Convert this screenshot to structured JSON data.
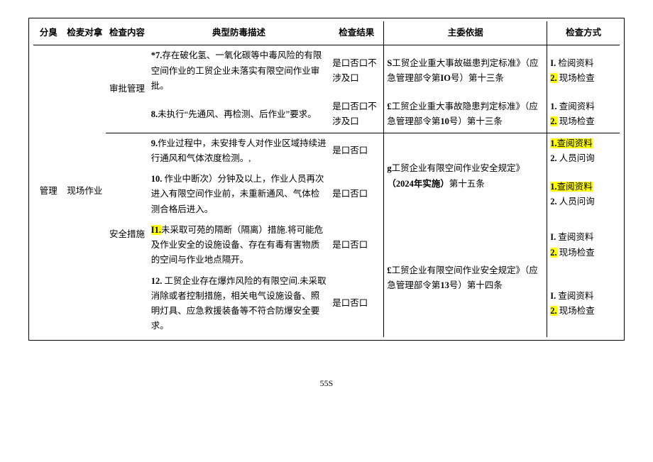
{
  "headers": {
    "c1": "分臭",
    "c2": "检麦对拿",
    "c3": "检查内容",
    "c4": "典型防毒描述",
    "c5": "检查结果",
    "c6": "主委依据",
    "c7": "检查方式"
  },
  "groups": {
    "cat": "管理",
    "obj": "现场作业",
    "content1": "审批管理",
    "content2": "安全措施"
  },
  "rows": [
    {
      "desc_pre": "*7.",
      "desc": "存在破化氢、一氧化碳等中毒风险的有限空间作业的工贸企业未落实有限空间作业审批。",
      "result": "是口否口不涉及口",
      "basis_pre": "S",
      "basis_mid": "工贸企业重大事故磁患判定标准》（应急管理部令第",
      "basis_hl": "IO",
      "basis_end": "号）第十三条",
      "meth1_pre": "I.",
      "meth1": "检阅资料",
      "meth2_pre": "2.",
      "meth2": "现场检查"
    },
    {
      "desc_pre": "8.",
      "desc": "未执行“先通风、再检测、后作业”要求。",
      "result": "是口否口不涉及口",
      "basis_pre": "£",
      "basis_mid": "工贸企业重大事故隐患判定标准》（应急管理部令第",
      "basis_hl": "10",
      "basis_end": "号）第十三条",
      "meth1_pre": "1.",
      "meth1": "查阅资料",
      "meth2_pre": "2.",
      "meth2": "现场检查"
    },
    {
      "desc_pre": "9.",
      "desc": "作业过程中，未安排专人对作业区域持续进行通风和气体浓度检测。,",
      "result": "是口否口",
      "meth1_pre": "1.",
      "meth1": "查阅资料",
      "meth2_pre": "2.",
      "meth2": "人员问询"
    },
    {
      "desc_pre": "10.",
      "desc": "作业中断次）分钟及以上，作业人员再次进入有限空间作业前，未重新通风、气体检测合格后进入。",
      "result": "是口否口",
      "meth1_pre": "1.",
      "meth1": "查阅资料",
      "meth2_pre": "2.",
      "meth2": "人员问询"
    },
    {
      "desc_pre": "I1.",
      "desc": "未采取可苑的隔断（隔离）措施.将可能危及作业安全的设施设备、存在有毒有害物质的空间与作业地点隔开。",
      "result": "是口否口",
      "meth1_pre": "I.",
      "meth1": "查阅资料",
      "meth2_pre": "2.",
      "meth2": "现场检查"
    },
    {
      "desc_pre": "12.",
      "desc": "工贸企业存在爆炸风险的有限空间.未采取消除或者控制措施，相关电气设施设备、照明灯具、应急救援装备等不符合防爆安全要求。",
      "result": "是口否口",
      "meth1_pre": "I.",
      "meth1": "查阅资料",
      "meth2_pre": "2.",
      "meth2": "现场检查"
    }
  ],
  "basis_block1": {
    "pre": "g",
    "mid": "工贸企业有限空间作业安全规定》",
    "hl": "（2024年实施）",
    "end": "第十五条"
  },
  "basis_block2": {
    "pre": "£",
    "mid1": "工贸企业有限空间作业安全规定》（应急管理部令第",
    "hl": "13",
    "mid2": "号）第十四条"
  },
  "page": "55S"
}
